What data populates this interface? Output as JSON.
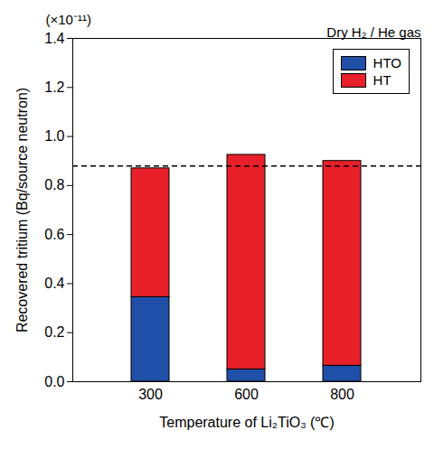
{
  "chart_data": {
    "type": "bar",
    "stacked": true,
    "x_label": "Temperature of Li₂TiO₃ (℃)",
    "y_label": "Recovered tritium (Bq/source neutron)",
    "annotations": [
      "(×10⁻¹¹)",
      "Dry H₂ / He gas"
    ],
    "categories": [
      "300",
      "600",
      "800"
    ],
    "series": [
      {
        "name": "HTO",
        "color": "#1f4fa6",
        "values": [
          0.345,
          0.05,
          0.065
        ]
      },
      {
        "name": "HT",
        "color": "#e8202a",
        "values": [
          0.525,
          0.875,
          0.835
        ]
      }
    ],
    "hline": 0.88,
    "line_style": "dashed",
    "ylim": [
      0,
      1.4
    ],
    "yticks": [
      {
        "value": 0,
        "label": "0.0"
      },
      0.2,
      0.4,
      0.6,
      0.8,
      {
        "value": 1,
        "label": "1.0"
      },
      1.2,
      1.4
    ],
    "legend": "upper right",
    "grid": false
  }
}
